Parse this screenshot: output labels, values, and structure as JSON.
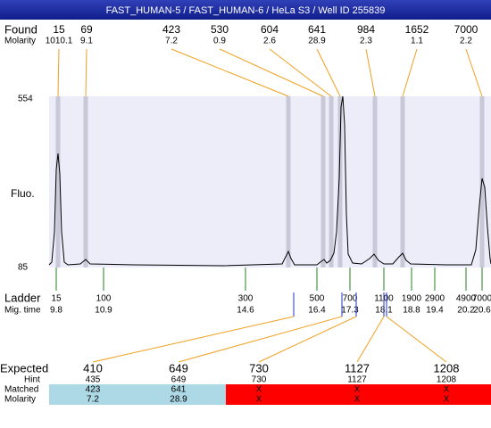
{
  "header": {
    "title": "FAST_HUMAN-5 / FAST_HUMAN-6 / HeLa S3 / Well ID 255839"
  },
  "found": {
    "label": "Found",
    "molarity_label": "Molarity",
    "sizes": [
      15,
      69,
      423,
      530,
      604,
      641,
      984,
      1652,
      7000
    ],
    "molarities": [
      1010.1,
      9.1,
      7.2,
      0.9,
      2.6,
      28.9,
      2.3,
      1.1,
      2.2
    ]
  },
  "axis": {
    "label": "Fluo.",
    "max": 554,
    "min": 85
  },
  "ladder": {
    "label": "Ladder",
    "time_label": "Mig. time",
    "sizes": [
      15,
      100,
      300,
      500,
      700,
      1100,
      1900,
      2900,
      4900,
      7000
    ],
    "times": [
      9.8,
      10.9,
      14.6,
      16.4,
      17.3,
      18.1,
      18.8,
      19.4,
      20.2,
      20.6
    ]
  },
  "expected": {
    "label": "Expected",
    "hint_label": "Hint",
    "matched_label": "Matched",
    "molarity_label": "Molarity",
    "sizes": [
      410,
      649,
      730,
      1127,
      1208
    ],
    "hints": [
      435,
      649,
      730,
      1127,
      1208
    ],
    "matched": [
      423,
      641,
      "X",
      "X",
      "X"
    ],
    "molarities": [
      7.2,
      28.9,
      "X",
      "X",
      "X"
    ]
  }
}
